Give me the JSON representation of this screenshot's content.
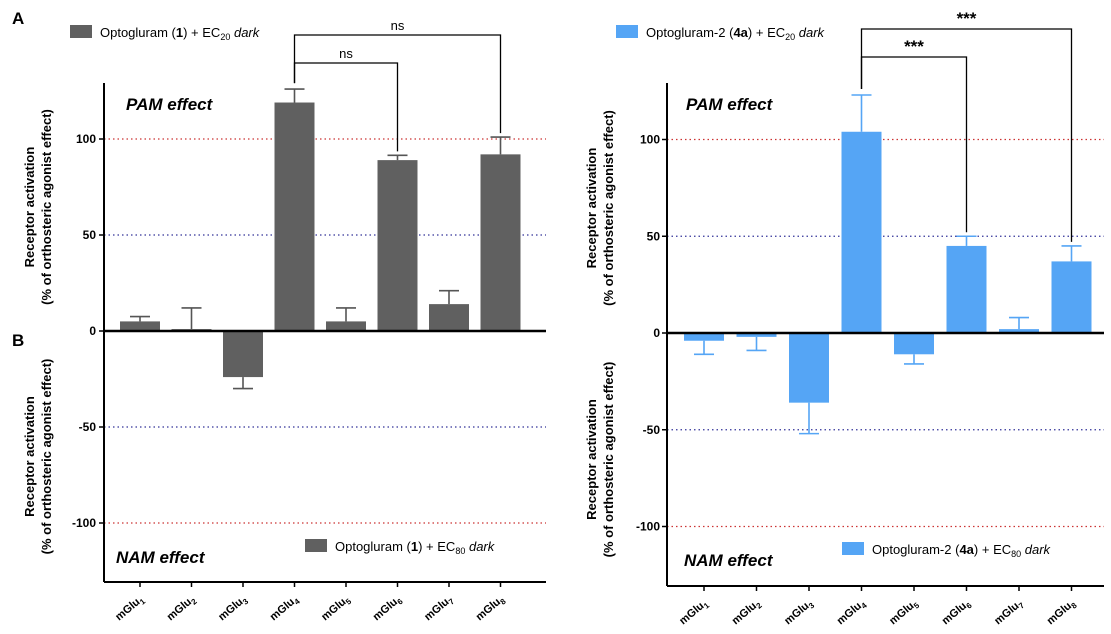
{
  "figure": {
    "panel_labels": [
      "A",
      "B"
    ]
  },
  "chart_data": [
    {
      "type": "bar",
      "panel": "left",
      "color": "#606060",
      "categories": [
        "mGlu1",
        "mGlu2",
        "mGlu3",
        "mGlu4",
        "mGlu5",
        "mGlu6",
        "mGlu7",
        "mGlu8"
      ],
      "ylabel_line1": "Receptor activation",
      "ylabel_line2": "(% of orthosteric agonist effect)",
      "pam": {
        "label": "PAM effect",
        "legend": {
          "name": "Optogluram",
          "bold": "1",
          "suffix": "EC",
          "sub": "20",
          "italic": "dark"
        },
        "ylim": [
          0,
          125
        ],
        "yticks": [
          0,
          50,
          100
        ],
        "values": [
          5,
          1,
          0,
          119,
          5,
          89,
          14,
          92
        ],
        "errors": [
          2.5,
          11,
          0,
          7,
          7,
          2.5,
          7,
          9
        ],
        "reference_lines": [
          {
            "value": 100,
            "color": "#cc3333"
          },
          {
            "value": 50,
            "color": "#333399"
          }
        ],
        "significance": [
          {
            "from": 3,
            "to": 5,
            "label": "ns"
          },
          {
            "from": 3,
            "to": 7,
            "label": "ns"
          }
        ]
      },
      "nam": {
        "label": "NAM effect",
        "legend": {
          "name": "Optogluram",
          "bold": "1",
          "suffix": "EC",
          "sub": "80",
          "italic": "dark"
        },
        "ylim": [
          -130,
          0
        ],
        "yticks": [
          -50,
          -100
        ],
        "ytick_labels": [
          "-50",
          "-100"
        ],
        "values": [
          0,
          0,
          -24,
          0,
          0,
          0,
          0,
          0
        ],
        "errors": [
          0,
          0,
          6,
          0,
          0,
          0,
          0,
          0
        ],
        "reference_lines": [
          {
            "value": -50,
            "color": "#333399"
          },
          {
            "value": -100,
            "color": "#cc3333"
          }
        ]
      }
    },
    {
      "type": "bar",
      "panel": "right",
      "color": "#55a5f5",
      "categories": [
        "mGlu1",
        "mGlu2",
        "mGlu3",
        "mGlu4",
        "mGlu5",
        "mGlu6",
        "mGlu7",
        "mGlu8"
      ],
      "ylabel_line1": "Receptor activation",
      "ylabel_line2": "(% of orthosteric agonist effect)",
      "pam": {
        "label": "PAM effect",
        "legend": {
          "name": "Optogluram-2",
          "bold": "4a",
          "suffix": "EC",
          "sub": "20",
          "italic": "dark"
        },
        "ylim": [
          0,
          130
        ],
        "yticks": [
          0,
          50,
          100
        ],
        "values": [
          0,
          0,
          0,
          104,
          0,
          45,
          2,
          37
        ],
        "errors": [
          0,
          0,
          0,
          19,
          0,
          5,
          6,
          8
        ],
        "reference_lines": [
          {
            "value": 100,
            "color": "#cc3333"
          },
          {
            "value": 50,
            "color": "#333399"
          }
        ],
        "significance": [
          {
            "from": 3,
            "to": 5,
            "label": "***"
          },
          {
            "from": 3,
            "to": 7,
            "label": "***"
          }
        ]
      },
      "nam": {
        "label": "NAM effect",
        "legend": {
          "name": "Optogluram-2",
          "bold": "4a",
          "suffix": "EC",
          "sub": "80",
          "italic": "dark"
        },
        "ylim": [
          -130,
          0
        ],
        "yticks": [
          -50,
          -100
        ],
        "ytick_labels": [
          "-50",
          "-100"
        ],
        "values": [
          -4,
          -2,
          -36,
          0,
          -11,
          0,
          0,
          0
        ],
        "errors": [
          7,
          7,
          16,
          0,
          5,
          0,
          0,
          0
        ],
        "reference_lines": [
          {
            "value": -50,
            "color": "#333399"
          },
          {
            "value": -100,
            "color": "#cc3333"
          }
        ]
      }
    }
  ]
}
